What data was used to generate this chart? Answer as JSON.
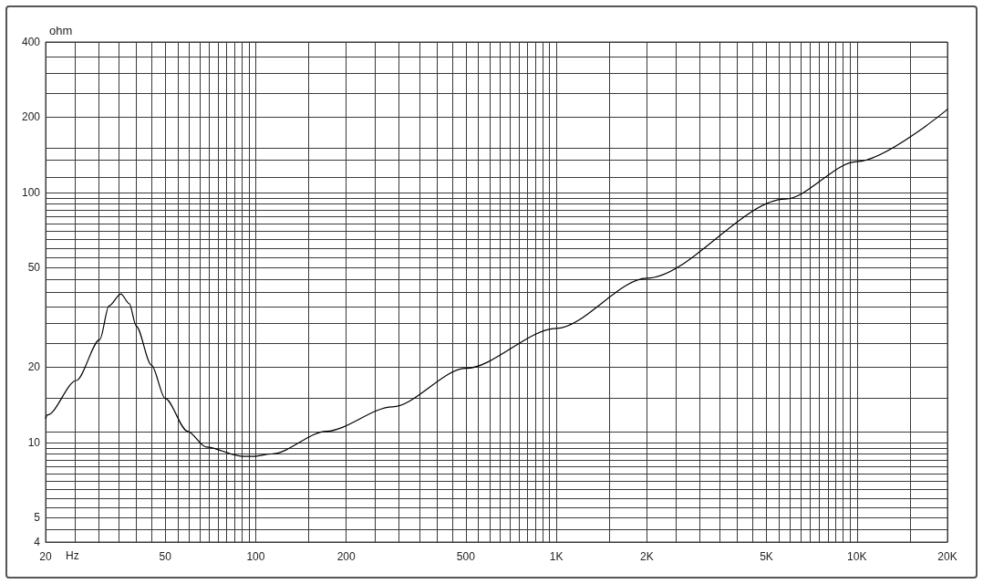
{
  "chart_data": {
    "type": "line",
    "xlabel": "Hz",
    "ylabel": "ohm",
    "log": "xy",
    "grid": true,
    "marker": "none",
    "line_style": "solid",
    "xlim": [
      20,
      20000
    ],
    "ylim": [
      4,
      400
    ],
    "xticks": [
      20,
      {
        "value": 25,
        "label": null
      },
      {
        "value": 30,
        "label": null
      },
      {
        "value": 35,
        "label": null
      },
      {
        "value": 40,
        "label": null
      },
      {
        "value": 45,
        "label": null
      },
      50,
      {
        "value": 55,
        "label": null
      },
      {
        "value": 60,
        "label": null
      },
      {
        "value": 65,
        "label": null
      },
      {
        "value": 70,
        "label": null
      },
      {
        "value": 75,
        "label": null
      },
      {
        "value": 80,
        "label": null
      },
      {
        "value": 85,
        "label": null
      },
      {
        "value": 90,
        "label": null
      },
      {
        "value": 95,
        "label": null
      },
      100,
      {
        "value": 150,
        "label": null
      },
      200,
      {
        "value": 250,
        "label": null
      },
      {
        "value": 300,
        "label": null
      },
      {
        "value": 350,
        "label": null
      },
      {
        "value": 400,
        "label": null
      },
      {
        "value": 450,
        "label": null
      },
      500,
      {
        "value": 550,
        "label": null
      },
      {
        "value": 600,
        "label": null
      },
      {
        "value": 650,
        "label": null
      },
      {
        "value": 700,
        "label": null
      },
      {
        "value": 750,
        "label": null
      },
      {
        "value": 800,
        "label": null
      },
      {
        "value": 850,
        "label": null
      },
      {
        "value": 900,
        "label": null
      },
      {
        "value": 950,
        "label": null
      },
      {
        "value": 1000,
        "label": "1K"
      },
      {
        "value": 1500,
        "label": null
      },
      {
        "value": 2000,
        "label": "2K"
      },
      {
        "value": 2500,
        "label": null
      },
      {
        "value": 3000,
        "label": null
      },
      {
        "value": 3500,
        "label": null
      },
      {
        "value": 4000,
        "label": null
      },
      {
        "value": 4500,
        "label": null
      },
      {
        "value": 5000,
        "label": "5K"
      },
      {
        "value": 5500,
        "label": null
      },
      {
        "value": 6000,
        "label": null
      },
      {
        "value": 6500,
        "label": null
      },
      {
        "value": 7000,
        "label": null
      },
      {
        "value": 7500,
        "label": null
      },
      {
        "value": 8000,
        "label": null
      },
      {
        "value": 8500,
        "label": null
      },
      {
        "value": 9000,
        "label": null
      },
      {
        "value": 9500,
        "label": null
      },
      {
        "value": 10000,
        "label": "10K"
      },
      {
        "value": 15000,
        "label": null
      },
      {
        "value": 20000,
        "label": "20K"
      }
    ],
    "yticks": [
      4,
      {
        "value": 4.5,
        "label": null
      },
      5,
      {
        "value": 5.5,
        "label": null
      },
      {
        "value": 6,
        "label": null
      },
      {
        "value": 6.5,
        "label": null
      },
      {
        "value": 7,
        "label": null
      },
      {
        "value": 7.5,
        "label": null
      },
      {
        "value": 8,
        "label": null
      },
      {
        "value": 8.5,
        "label": null
      },
      {
        "value": 9,
        "label": null
      },
      {
        "value": 9.5,
        "label": null
      },
      10,
      {
        "value": 11,
        "label": null
      },
      {
        "value": 15,
        "label": null
      },
      20,
      {
        "value": 25,
        "label": null
      },
      {
        "value": 30,
        "label": null
      },
      {
        "value": 35,
        "label": null
      },
      {
        "value": 40,
        "label": null
      },
      {
        "value": 45,
        "label": null
      },
      50,
      {
        "value": 55,
        "label": null
      },
      {
        "value": 60,
        "label": null
      },
      {
        "value": 65,
        "label": null
      },
      {
        "value": 70,
        "label": null
      },
      {
        "value": 75,
        "label": null
      },
      {
        "value": 80,
        "label": null
      },
      {
        "value": 85,
        "label": null
      },
      {
        "value": 90,
        "label": null
      },
      {
        "value": 95,
        "label": null
      },
      100,
      {
        "value": 115,
        "label": null
      },
      {
        "value": 135,
        "label": null
      },
      {
        "value": 150,
        "label": null
      },
      200,
      {
        "value": 250,
        "label": null
      },
      {
        "value": 300,
        "label": null
      },
      {
        "value": 350,
        "label": null
      },
      400
    ],
    "series": [
      {
        "color": "#000000",
        "x": [
          20,
          20.3,
          25.3,
          30.3,
          32.5,
          35.6,
          38,
          40,
          45,
          50,
          59.3,
          68.4,
          90.4,
          98.1,
          113,
          172,
          285,
          500,
          1000,
          2000,
          5780,
          10000,
          20000
        ],
        "values": [
          12.5,
          12.9,
          17.7,
          25.8,
          35.2,
          39.3,
          35.9,
          29.3,
          20.4,
          15,
          11.1,
          9.6,
          8.8,
          8.8,
          9,
          11.1,
          13.9,
          19.8,
          28.6,
          45.4,
          94.2,
          133,
          215
        ]
      }
    ]
  }
}
